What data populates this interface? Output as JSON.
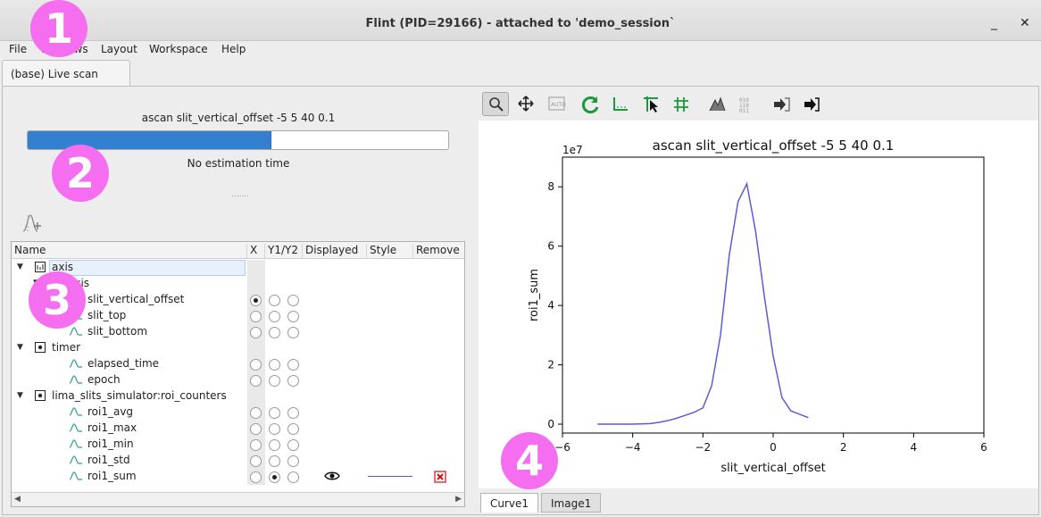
{
  "window": {
    "title": "Flint (PID=29166) - attached to 'demo_session`",
    "minimize": "_",
    "close": "✕"
  },
  "menu": [
    "File",
    "Windows",
    "Layout",
    "Workspace",
    "Help"
  ],
  "workspace_tab": "(base) Live scan",
  "scan": {
    "title": "ascan slit_vertical_offset -5 5 40 0.1",
    "progress": 0.58,
    "estimation": "No estimation time"
  },
  "tree": {
    "columns": [
      "Name",
      "X",
      "Y1/Y2",
      "Displayed",
      "Style",
      "Remove"
    ],
    "rows": [
      {
        "kind": "group",
        "label": "axis",
        "x": null,
        "y1": null,
        "y2": null
      },
      {
        "kind": "subgroup",
        "label": "axis",
        "x": null,
        "y1": null,
        "y2": null
      },
      {
        "kind": "channel",
        "label": "slit_vertical_offset",
        "x": true,
        "y1": false,
        "y2": false
      },
      {
        "kind": "channel",
        "label": "slit_top",
        "x": false,
        "y1": false,
        "y2": false
      },
      {
        "kind": "channel",
        "label": "slit_bottom",
        "x": false,
        "y1": false,
        "y2": false
      },
      {
        "kind": "group",
        "label": "timer",
        "x": null,
        "y1": null,
        "y2": null
      },
      {
        "kind": "channel",
        "label": "elapsed_time",
        "x": false,
        "y1": false,
        "y2": false
      },
      {
        "kind": "channel",
        "label": "epoch",
        "x": false,
        "y1": false,
        "y2": false
      },
      {
        "kind": "group",
        "label": "lima_slits_simulator:roi_counters",
        "x": null,
        "y1": null,
        "y2": null
      },
      {
        "kind": "channel",
        "label": "roi1_avg",
        "x": false,
        "y1": false,
        "y2": false
      },
      {
        "kind": "channel",
        "label": "roi1_max",
        "x": false,
        "y1": false,
        "y2": false
      },
      {
        "kind": "channel",
        "label": "roi1_min",
        "x": false,
        "y1": false,
        "y2": false
      },
      {
        "kind": "channel",
        "label": "roi1_std",
        "x": false,
        "y1": false,
        "y2": false
      },
      {
        "kind": "channel",
        "label": "roi1_sum",
        "x": false,
        "y1": true,
        "y2": false,
        "displayed": true,
        "style_color": "#5b5bd6",
        "removable": true
      }
    ]
  },
  "plot_tabs": [
    "Curve1",
    "Image1"
  ],
  "badges": [
    "1",
    "2",
    "3",
    "4"
  ],
  "colors": {
    "accent": "#3380d0",
    "curve": "#5b5bd6",
    "badge": "#f56ef0",
    "remove": "#cc1111"
  },
  "chart_data": {
    "type": "line",
    "title": "ascan slit_vertical_offset -5 5 40 0.1",
    "xlabel": "slit_vertical_offset",
    "ylabel": "roi1_sum",
    "y_offset_label": "1e7",
    "xlim": [
      -6,
      6
    ],
    "ylim": [
      -0.3,
      9.0
    ],
    "xticks": [
      -6,
      -4,
      -2,
      0,
      2,
      4,
      6
    ],
    "yticks": [
      0,
      2,
      4,
      6,
      8
    ],
    "series": [
      {
        "x": [
          -5.0,
          -4.0,
          -3.5,
          -3.25,
          -3.0,
          -2.75,
          -2.5,
          -2.25,
          -2.0,
          -1.75,
          -1.5,
          -1.25,
          -1.0,
          -0.75,
          -0.5,
          -0.25,
          0.0,
          0.25,
          0.5,
          1.0
        ],
        "values": [
          0.0,
          0.0,
          0.02,
          0.06,
          0.12,
          0.2,
          0.3,
          0.4,
          0.55,
          1.3,
          3.0,
          5.7,
          7.5,
          8.1,
          6.5,
          4.3,
          2.3,
          0.9,
          0.45,
          0.22
        ]
      }
    ]
  }
}
